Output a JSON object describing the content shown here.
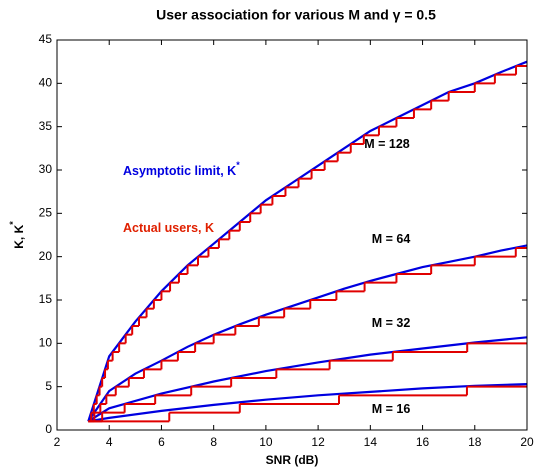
{
  "chart_data": {
    "type": "line",
    "title": "User association for various M and γ = 0.5",
    "x_label": "SNR (dB)",
    "y_label": {
      "text": "K, K",
      "sup": "*"
    },
    "xlim": [
      2,
      20
    ],
    "xticks": [
      2,
      4,
      6,
      8,
      10,
      12,
      14,
      16,
      18,
      20
    ],
    "ylim": [
      0,
      45
    ],
    "yticks": [
      0,
      5,
      10,
      15,
      20,
      25,
      30,
      35,
      40,
      45
    ],
    "grid": false,
    "annotations": [
      {
        "text": "M = 128"
      },
      {
        "text": "M = 64"
      },
      {
        "text": "M = 32"
      },
      {
        "text": "M = 16"
      },
      {
        "text": "Asymptotic limit, K",
        "sup": "*",
        "color": "#0000e0"
      },
      {
        "text": "Actual users, K",
        "color": "#e02000"
      }
    ],
    "series": [
      {
        "color": "#0000e0",
        "x": [
          3.2,
          4,
          5,
          6,
          7,
          8,
          9,
          10,
          11,
          12,
          13,
          14,
          15,
          16,
          17,
          18,
          19,
          20
        ],
        "values": [
          1,
          8.5,
          12.5,
          16,
          19,
          21.5,
          24,
          26.5,
          28.5,
          30.5,
          32.5,
          34.5,
          36,
          37.5,
          39,
          40,
          41.3,
          42.5
        ]
      },
      {
        "color": "#0000e0",
        "x": [
          3.2,
          4,
          5,
          6,
          7,
          8,
          9,
          10,
          11,
          12,
          13,
          14,
          15,
          16,
          17,
          18,
          19,
          20
        ],
        "values": [
          1,
          4.5,
          6.5,
          8,
          9.6,
          11,
          12.2,
          13.3,
          14.3,
          15.3,
          16.3,
          17.2,
          18,
          18.8,
          19.4,
          20,
          20.7,
          21.3
        ]
      },
      {
        "color": "#0000e0",
        "x": [
          3.2,
          4,
          6,
          8,
          10,
          12,
          14,
          16,
          18,
          20
        ],
        "values": [
          1,
          2.5,
          4.2,
          5.6,
          6.8,
          7.8,
          8.7,
          9.4,
          10.1,
          10.7
        ]
      },
      {
        "color": "#0000e0",
        "x": [
          3.2,
          4,
          6,
          8,
          10,
          12,
          14,
          16,
          18,
          20
        ],
        "values": [
          1,
          1.4,
          2.2,
          2.9,
          3.5,
          4,
          4.4,
          4.8,
          5.1,
          5.3
        ]
      },
      {
        "color": "#e00000",
        "step": true,
        "x": [
          3.2,
          3.31,
          3.41,
          3.52,
          3.63,
          3.73,
          3.84,
          3.95,
          4.13,
          4.38,
          4.63,
          4.88,
          5.14,
          5.43,
          5.71,
          6.0,
          6.33,
          6.67,
          7.0,
          7.4,
          7.8,
          8.2,
          8.6,
          9.0,
          9.4,
          9.8,
          10.25,
          10.75,
          11.25,
          11.75,
          12.25,
          12.75,
          13.25,
          13.75,
          14.33,
          15.0,
          15.67,
          16.33,
          17.0,
          18.0,
          18.77,
          19.58
        ],
        "values": [
          1,
          2,
          3,
          4,
          5,
          6,
          7,
          8,
          9,
          10,
          11,
          12,
          13,
          14,
          15,
          16,
          17,
          18,
          19,
          20,
          21,
          22,
          23,
          24,
          25,
          26,
          27,
          28,
          29,
          30,
          31,
          32,
          33,
          34,
          35,
          36,
          37,
          38,
          39,
          40,
          41,
          42
        ]
      },
      {
        "color": "#e00000",
        "step": true,
        "x": [
          3.2,
          3.43,
          3.66,
          3.89,
          4.25,
          4.75,
          5.33,
          6.0,
          6.63,
          7.29,
          8.0,
          8.83,
          9.73,
          10.7,
          11.7,
          12.7,
          13.78,
          15.0,
          16.33,
          18.0,
          19.57
        ],
        "values": [
          1,
          2,
          3,
          4,
          5,
          6,
          7,
          8,
          9,
          10,
          11,
          12,
          13,
          14,
          15,
          16,
          17,
          18,
          19,
          20,
          21
        ]
      },
      {
        "color": "#e00000",
        "step": true,
        "x": [
          3.2,
          3.73,
          4.59,
          5.76,
          7.14,
          8.67,
          10.4,
          12.44,
          14.86,
          17.71
        ],
        "values": [
          1,
          2,
          3,
          4,
          5,
          6,
          7,
          8,
          9,
          10
        ]
      },
      {
        "color": "#e00000",
        "step": true,
        "x": [
          3.2,
          6.3,
          9.0,
          12.8,
          17.7
        ],
        "values": [
          1,
          2,
          3,
          4,
          5
        ]
      }
    ]
  }
}
